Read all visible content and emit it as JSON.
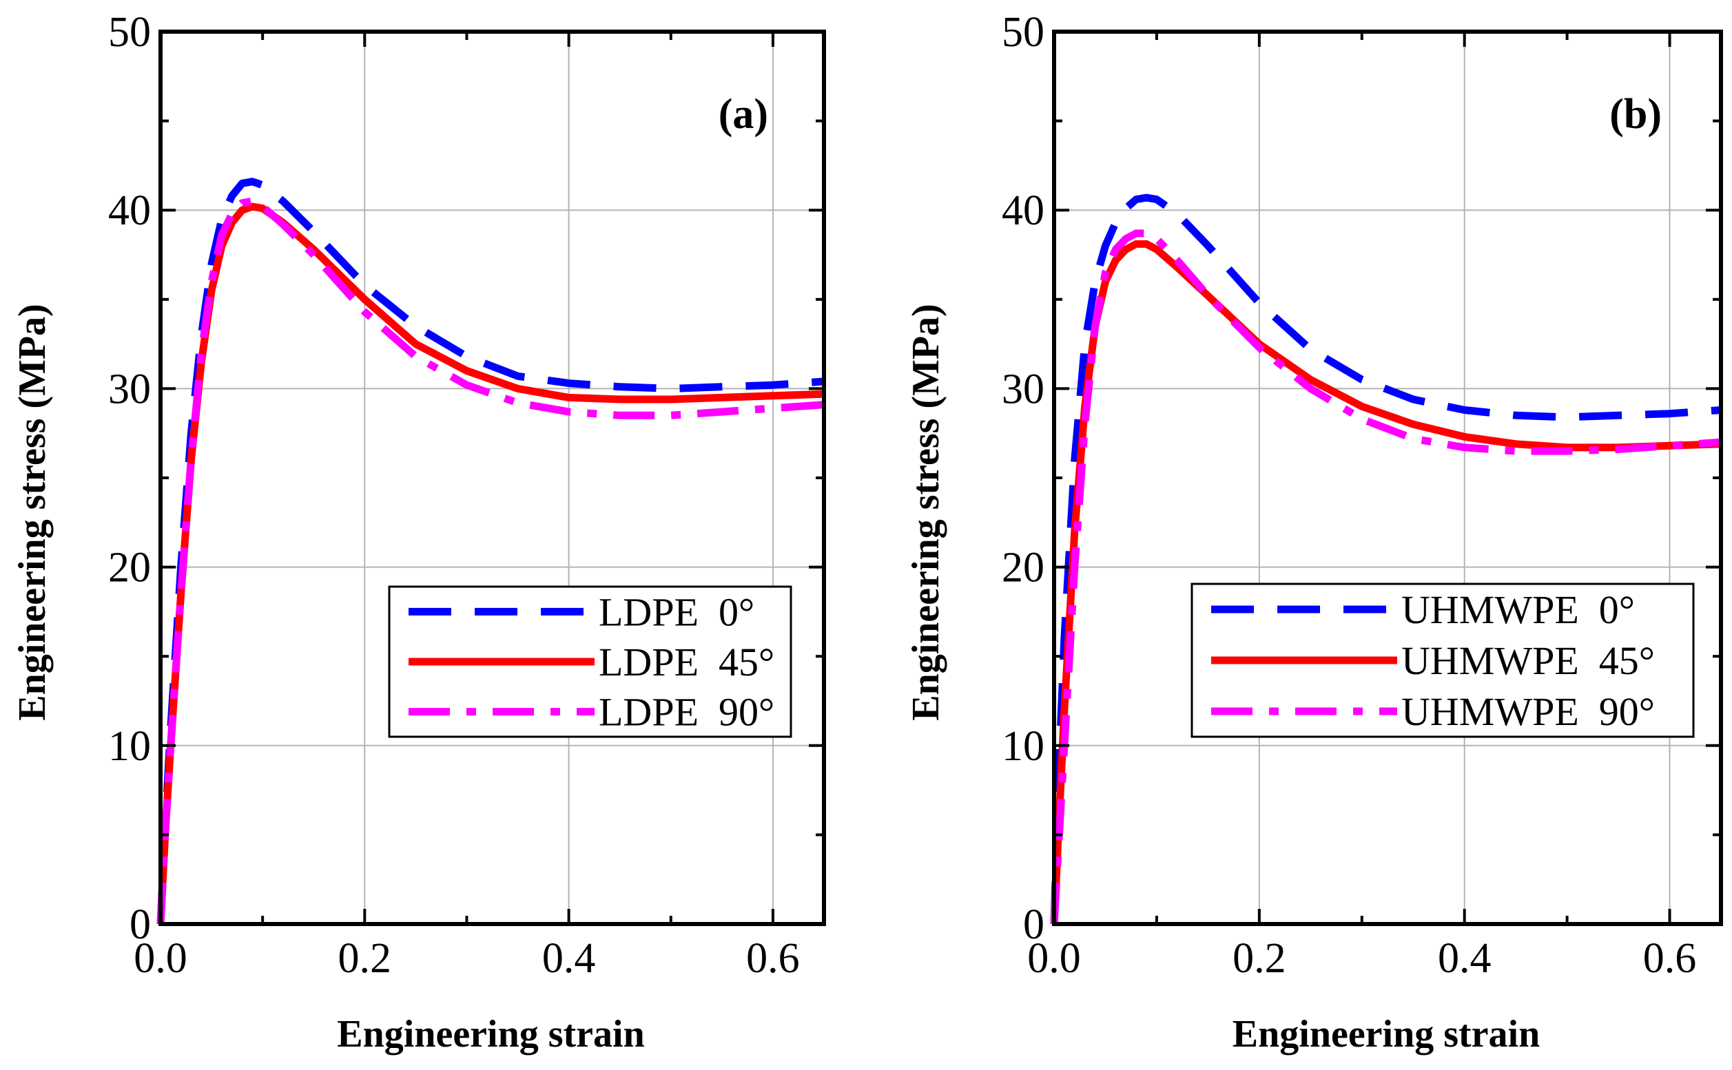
{
  "chart_data": [
    {
      "type": "line",
      "panel_label": "(a)",
      "xlabel": "Engineering strain",
      "ylabel": "Engineering stress (MPa)",
      "xlim": [
        0,
        0.65
      ],
      "ylim": [
        0,
        50
      ],
      "xticks": [
        0.0,
        0.2,
        0.4,
        0.6
      ],
      "xtick_labels": [
        "0.0",
        "0.2",
        "0.4",
        "0.6"
      ],
      "yticks": [
        0,
        10,
        20,
        30,
        40,
        50
      ],
      "ytick_labels": [
        "0",
        "10",
        "20",
        "30",
        "40",
        "50"
      ],
      "grid": true,
      "legend_position": "lower-right",
      "series": [
        {
          "name": "LDPE  0°",
          "color": "#0000ff",
          "style": "dash",
          "x": [
            0,
            0.005,
            0.01,
            0.02,
            0.03,
            0.04,
            0.05,
            0.06,
            0.07,
            0.08,
            0.09,
            0.1,
            0.12,
            0.15,
            0.2,
            0.25,
            0.3,
            0.35,
            0.4,
            0.45,
            0.5,
            0.55,
            0.6,
            0.65
          ],
          "y": [
            0,
            6,
            11,
            20,
            27.5,
            33,
            37,
            39.5,
            40.8,
            41.5,
            41.6,
            41.4,
            40.5,
            38.8,
            35.8,
            33.5,
            31.8,
            30.7,
            30.3,
            30.1,
            30.0,
            30.1,
            30.2,
            30.4
          ]
        },
        {
          "name": "LDPE  45°",
          "color": "#ff0000",
          "style": "solid",
          "x": [
            0,
            0.005,
            0.01,
            0.02,
            0.03,
            0.04,
            0.05,
            0.06,
            0.07,
            0.08,
            0.09,
            0.1,
            0.12,
            0.15,
            0.2,
            0.25,
            0.3,
            0.35,
            0.4,
            0.45,
            0.5,
            0.55,
            0.6,
            0.65
          ],
          "y": [
            0,
            5.5,
            10,
            18.5,
            26,
            31.5,
            35.5,
            38,
            39.3,
            40,
            40.2,
            40.1,
            39.3,
            37.8,
            35,
            32.5,
            31,
            30,
            29.5,
            29.4,
            29.4,
            29.5,
            29.6,
            29.7
          ]
        },
        {
          "name": "LDPE  90°",
          "color": "#ff00ff",
          "style": "dashdot",
          "x": [
            0,
            0.005,
            0.01,
            0.02,
            0.03,
            0.04,
            0.05,
            0.06,
            0.07,
            0.08,
            0.09,
            0.1,
            0.12,
            0.15,
            0.2,
            0.25,
            0.3,
            0.35,
            0.4,
            0.45,
            0.5,
            0.55,
            0.6,
            0.65
          ],
          "y": [
            0,
            5.5,
            10,
            18.5,
            26,
            32,
            36,
            38.6,
            39.8,
            40.4,
            40.5,
            40.2,
            39.2,
            37.5,
            34.3,
            31.8,
            30.2,
            29.2,
            28.7,
            28.5,
            28.5,
            28.7,
            28.9,
            29.1
          ]
        }
      ]
    },
    {
      "type": "line",
      "panel_label": "(b)",
      "xlabel": "Engineering strain",
      "ylabel": "Engineering stress (MPa)",
      "xlim": [
        0,
        0.65
      ],
      "ylim": [
        0,
        50
      ],
      "xticks": [
        0.0,
        0.2,
        0.4,
        0.6
      ],
      "xtick_labels": [
        "0.0",
        "0.2",
        "0.4",
        "0.6"
      ],
      "yticks": [
        0,
        10,
        20,
        30,
        40,
        50
      ],
      "ytick_labels": [
        "0",
        "10",
        "20",
        "30",
        "40",
        "50"
      ],
      "grid": true,
      "legend_position": "lower-right",
      "series": [
        {
          "name": "UHMWPE  0°",
          "color": "#0000ff",
          "style": "dash",
          "x": [
            0,
            0.005,
            0.01,
            0.02,
            0.03,
            0.04,
            0.05,
            0.06,
            0.07,
            0.08,
            0.09,
            0.1,
            0.12,
            0.15,
            0.2,
            0.25,
            0.3,
            0.35,
            0.4,
            0.45,
            0.5,
            0.55,
            0.6,
            0.65
          ],
          "y": [
            0,
            9,
            16,
            26,
            32.5,
            36,
            38,
            39.3,
            40.1,
            40.6,
            40.7,
            40.6,
            39.8,
            38,
            34.8,
            32.2,
            30.5,
            29.4,
            28.8,
            28.5,
            28.4,
            28.5,
            28.6,
            28.8
          ]
        },
        {
          "name": "UHMWPE  45°",
          "color": "#ff0000",
          "style": "solid",
          "x": [
            0,
            0.005,
            0.01,
            0.02,
            0.03,
            0.04,
            0.05,
            0.06,
            0.07,
            0.08,
            0.09,
            0.1,
            0.12,
            0.15,
            0.2,
            0.25,
            0.3,
            0.35,
            0.4,
            0.45,
            0.5,
            0.55,
            0.6,
            0.65
          ],
          "y": [
            0,
            6,
            12,
            22,
            29,
            33.5,
            36,
            37.2,
            37.8,
            38.1,
            38.1,
            37.8,
            36.8,
            35.2,
            32.5,
            30.5,
            29,
            28,
            27.3,
            26.9,
            26.7,
            26.7,
            26.8,
            26.9
          ]
        },
        {
          "name": "UHMWPE  90°",
          "color": "#ff00ff",
          "style": "dashdot",
          "x": [
            0,
            0.005,
            0.01,
            0.02,
            0.03,
            0.04,
            0.05,
            0.06,
            0.07,
            0.08,
            0.09,
            0.1,
            0.12,
            0.15,
            0.2,
            0.25,
            0.3,
            0.35,
            0.4,
            0.45,
            0.5,
            0.55,
            0.6,
            0.65
          ],
          "y": [
            0,
            5,
            10,
            20,
            28,
            33.5,
            36.5,
            37.8,
            38.4,
            38.7,
            38.7,
            38.4,
            37.2,
            35.2,
            32.3,
            30,
            28.3,
            27.2,
            26.7,
            26.5,
            26.5,
            26.6,
            26.8,
            27.0
          ]
        }
      ]
    }
  ]
}
